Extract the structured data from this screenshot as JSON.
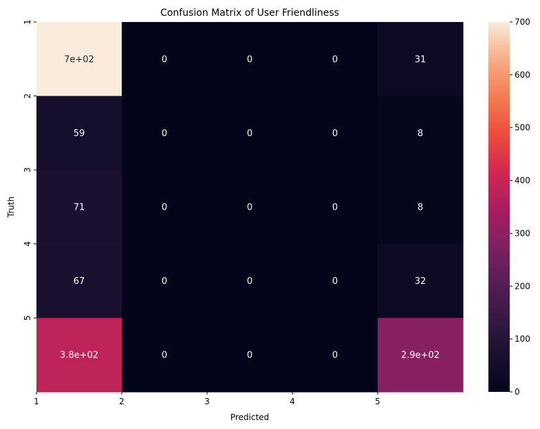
{
  "chart_data": {
    "type": "heatmap",
    "title": "Confusion Matrix of User Friendliness",
    "xlabel": "Predicted",
    "ylabel": "Truth",
    "x_ticks": [
      "1",
      "2",
      "3",
      "4",
      "5"
    ],
    "y_ticks": [
      "1",
      "2",
      "3",
      "4",
      "5"
    ],
    "matrix": [
      [
        700,
        0,
        0,
        0,
        31
      ],
      [
        59,
        0,
        0,
        0,
        8
      ],
      [
        71,
        0,
        0,
        0,
        8
      ],
      [
        67,
        0,
        0,
        0,
        32
      ],
      [
        380,
        0,
        0,
        0,
        290
      ]
    ],
    "annotations": [
      [
        "7e+02",
        "0",
        "0",
        "0",
        "31"
      ],
      [
        "59",
        "0",
        "0",
        "0",
        "8"
      ],
      [
        "71",
        "0",
        "0",
        "0",
        "8"
      ],
      [
        "67",
        "0",
        "0",
        "0",
        "32"
      ],
      [
        "3.8e+02",
        "0",
        "0",
        "0",
        "2.9e+02"
      ]
    ],
    "colorbar": {
      "min": 0,
      "max": 700,
      "ticks": [
        "0",
        "100",
        "200",
        "300",
        "400",
        "500",
        "600",
        "700"
      ],
      "colormap": "rocket"
    }
  }
}
